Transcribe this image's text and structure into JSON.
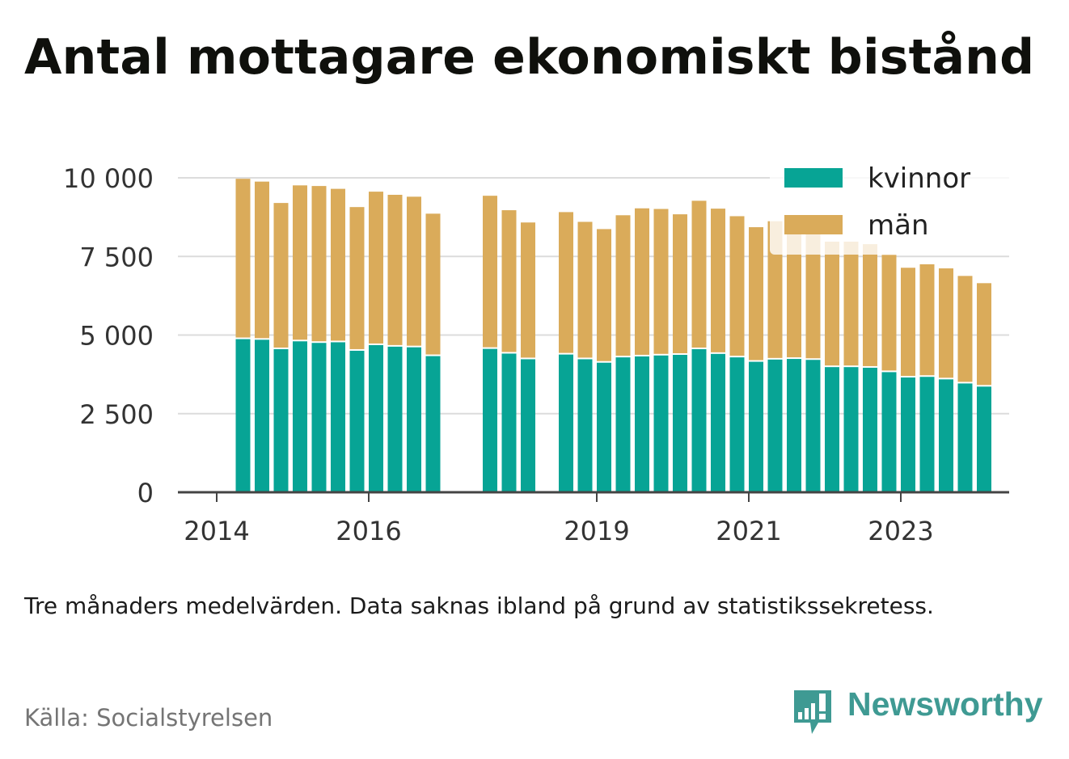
{
  "title": "Antal mottagare ekonomiskt bistånd",
  "note": "Tre månaders medelvärden. Data saknas ibland på grund av statistikssekretess.",
  "source": "Källa: Socialstyrelsen",
  "brand": {
    "name": "Newsworthy",
    "icon": "bar-chart-speech-bubble-icon",
    "color": "#3f9a93"
  },
  "chart_data": {
    "type": "bar",
    "stacked": true,
    "x_axis": {
      "type": "date",
      "min": "2014-01-01",
      "max": "2024-12-31",
      "ticks": [
        "2014",
        "2016",
        "2019",
        "2021",
        "2023"
      ]
    },
    "y_axis": {
      "min": 0,
      "max": 10000,
      "ticks": [
        0,
        2500,
        5000,
        7500,
        10000
      ],
      "tick_labels": [
        "0",
        "2 500",
        "5 000",
        "7 500",
        "10 000"
      ]
    },
    "grid": true,
    "legend": {
      "position": "top-right"
    },
    "colors": {
      "kvinnor": "#07a495",
      "män": "#daab5a"
    },
    "x": [
      "2014-04",
      "2014-07",
      "2014-10",
      "2015-01",
      "2015-04",
      "2015-07",
      "2015-10",
      "2016-01",
      "2016-04",
      "2016-07",
      "2016-10",
      "2017-07",
      "2017-10",
      "2018-01",
      "2018-07",
      "2018-10",
      "2019-01",
      "2019-04",
      "2019-07",
      "2019-10",
      "2020-01",
      "2020-04",
      "2020-07",
      "2020-10",
      "2021-01",
      "2021-04",
      "2021-07",
      "2021-10",
      "2022-01",
      "2022-04",
      "2022-07",
      "2022-10",
      "2023-01",
      "2023-04",
      "2023-07",
      "2023-10",
      "2024-01"
    ],
    "series": [
      {
        "name": "kvinnor",
        "values": [
          4870,
          4850,
          4550,
          4800,
          4750,
          4770,
          4500,
          4680,
          4630,
          4610,
          4330,
          4560,
          4410,
          4230,
          4380,
          4230,
          4120,
          4290,
          4320,
          4350,
          4370,
          4550,
          4400,
          4290,
          4150,
          4220,
          4240,
          4210,
          3980,
          3980,
          3960,
          3820,
          3650,
          3670,
          3590,
          3460,
          3360
        ]
      },
      {
        "name": "män",
        "values": [
          5100,
          5030,
          4650,
          4960,
          4990,
          4880,
          4570,
          4880,
          4830,
          4790,
          4530,
          4870,
          4560,
          4350,
          4530,
          4370,
          4250,
          4520,
          4710,
          4660,
          4470,
          4720,
          4620,
          4490,
          4280,
          4400,
          4390,
          4050,
          3990,
          3990,
          3930,
          3730,
          3490,
          3580,
          3530,
          3420,
          3290
        ]
      }
    ]
  }
}
